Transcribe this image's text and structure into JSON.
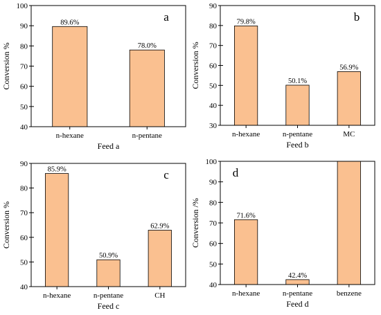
{
  "figure": {
    "background": "#ffffff",
    "bar_fill": "#FAC090",
    "bar_stroke": "#000000"
  },
  "chart_data": [
    {
      "type": "bar",
      "panel": "a",
      "title": "",
      "xlabel": "Feed a",
      "ylabel": "Conversion %",
      "categories": [
        "n-hexane",
        "n-pentane"
      ],
      "values": [
        89.6,
        78.0
      ],
      "data_labels": [
        "89.6%",
        "78.0%"
      ],
      "ylim": [
        40,
        100
      ],
      "yticks": [
        40,
        50,
        60,
        70,
        80,
        90,
        100
      ],
      "grid": false,
      "legend": "none"
    },
    {
      "type": "bar",
      "panel": "b",
      "title": "",
      "xlabel": "Feed b",
      "ylabel": "Conversion %",
      "categories": [
        "n-hexane",
        "n-pentane",
        "MC"
      ],
      "values": [
        79.8,
        50.1,
        56.9
      ],
      "data_labels": [
        "79.8%",
        "50.1%",
        "56.9%"
      ],
      "ylim": [
        30,
        90
      ],
      "yticks": [
        30,
        40,
        50,
        60,
        70,
        80,
        90
      ],
      "grid": false,
      "legend": "none"
    },
    {
      "type": "bar",
      "panel": "c",
      "title": "",
      "xlabel": "Feed c",
      "ylabel": "Conversion  %",
      "categories": [
        "n-hexane",
        "n-pentane",
        "CH"
      ],
      "values": [
        85.9,
        50.9,
        62.9
      ],
      "data_labels": [
        "85.9%",
        "50.9%",
        "62.9%"
      ],
      "ylim": [
        40,
        90
      ],
      "yticks": [
        40,
        50,
        60,
        70,
        80,
        90
      ],
      "grid": false,
      "legend": "none"
    },
    {
      "type": "bar",
      "panel": "d",
      "title": "",
      "xlabel": "Feed d",
      "ylabel": "Conversion /%",
      "categories": [
        "n-hexane",
        "n-pentane",
        "benzene"
      ],
      "values": [
        71.6,
        42.4,
        100
      ],
      "data_labels": [
        "71.6%",
        "42.4%",
        ""
      ],
      "ylim": [
        40,
        100
      ],
      "yticks": [
        40,
        50,
        60,
        70,
        80,
        90,
        100
      ],
      "grid": false,
      "legend": "none"
    }
  ]
}
